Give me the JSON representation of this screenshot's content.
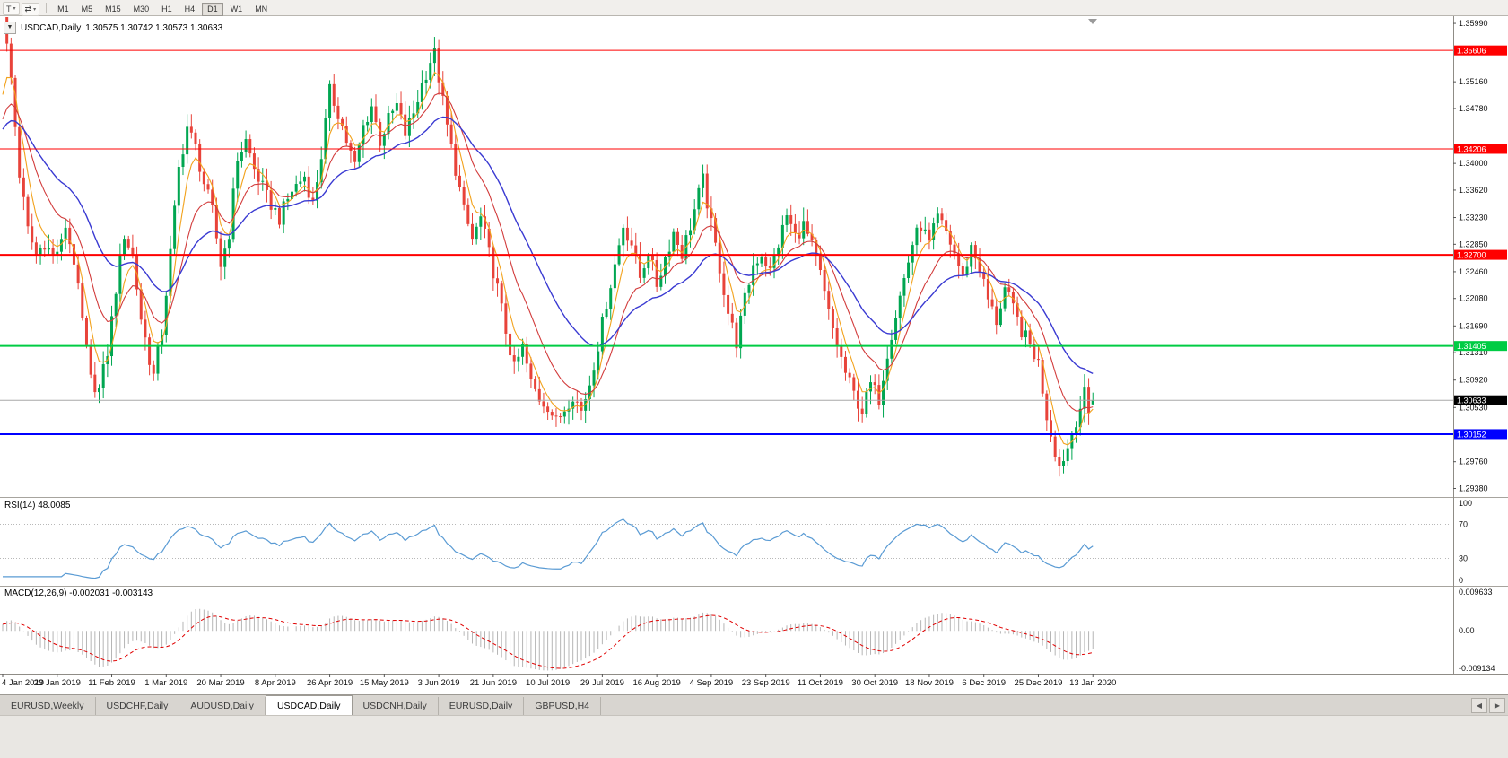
{
  "toolbar": {
    "icon_buttons": [
      {
        "name": "chart-type-button",
        "glyph": "T",
        "caret": "▾"
      },
      {
        "name": "cursor-mode-button",
        "glyph": "⇄",
        "caret": "▾"
      }
    ],
    "timeframes": [
      "M1",
      "M5",
      "M15",
      "M30",
      "H1",
      "H4",
      "D1",
      "W1",
      "MN"
    ],
    "active_timeframe": "D1"
  },
  "chart": {
    "oct_glyph": "▼",
    "title": "USDCAD,Daily",
    "ohlc_text": "1.30575 1.30742 1.30573 1.30633"
  },
  "chart_data": {
    "type": "candlestick",
    "symbol": "USDCAD",
    "timeframe": "Daily",
    "open": 1.30575,
    "high": 1.30742,
    "low": 1.30573,
    "close": 1.30633,
    "bar_count": 261,
    "x_label_step": 13,
    "x_labels": [
      "4 Jan 2019",
      "23 Jan 2019",
      "11 Feb 2019",
      "1 Mar 2019",
      "20 Mar 2019",
      "8 Apr 2019",
      "26 Apr 2019",
      "15 May 2019",
      "3 Jun 2019",
      "21 Jun 2019",
      "10 Jul 2019",
      "29 Jul 2019",
      "16 Aug 2019",
      "4 Sep 2019",
      "23 Sep 2019",
      "11 Oct 2019",
      "30 Oct 2019",
      "18 Nov 2019",
      "6 Dec 2019",
      "25 Dec 2019",
      "13 Jan 2020"
    ],
    "y_axis_labels": [
      "1.35990",
      "1.35160",
      "1.34780",
      "1.34000",
      "1.33620",
      "1.33230",
      "1.32850",
      "1.32460",
      "1.32080",
      "1.31690",
      "1.31310",
      "1.30920",
      "1.30530",
      "1.29760",
      "1.29380"
    ],
    "price_range_visible": [
      1.2927,
      1.3608
    ],
    "horizontal_lines": [
      {
        "label": "1.35606",
        "value": 1.35606,
        "color": "#ff0000",
        "width": 1
      },
      {
        "label": "1.34206",
        "value": 1.34206,
        "color": "#ff0000",
        "width": 1
      },
      {
        "label": "1.32700",
        "value": 1.327,
        "color": "#ff0000",
        "width": 2
      },
      {
        "label": "1.31405",
        "value": 1.31405,
        "color": "#00cc44",
        "width": 2
      },
      {
        "label": "1.30152",
        "value": 1.30152,
        "color": "#0000ff",
        "width": 2
      }
    ],
    "current_price": {
      "label": "1.30633",
      "value": 1.30633,
      "line_color": "#a8a8a8",
      "badge_bg": "#000000"
    },
    "candle_up_color": "#00a651",
    "candle_down_color": "#e8433a",
    "moving_averages": [
      {
        "name": "fast-ma",
        "period": 5,
        "color": "#f2a21c"
      },
      {
        "name": "medium-ma",
        "period": 13,
        "color": "#d23b3b"
      },
      {
        "name": "slow-ma",
        "period": 30,
        "color": "#3a3ad2"
      }
    ],
    "price_waypoints": [
      [
        0,
        1.362
      ],
      [
        1,
        1.3565
      ],
      [
        2,
        1.352
      ],
      [
        4,
        1.3385
      ],
      [
        6,
        1.3305
      ],
      [
        8,
        1.327
      ],
      [
        10,
        1.3288
      ],
      [
        12,
        1.3268
      ],
      [
        14,
        1.3285
      ],
      [
        15,
        1.3312
      ],
      [
        17,
        1.3262
      ],
      [
        19,
        1.3175
      ],
      [
        21,
        1.3092
      ],
      [
        23,
        1.3078
      ],
      [
        25,
        1.3132
      ],
      [
        27,
        1.3222
      ],
      [
        29,
        1.33
      ],
      [
        31,
        1.3268
      ],
      [
        33,
        1.318
      ],
      [
        35,
        1.3122
      ],
      [
        36,
        1.3098
      ],
      [
        38,
        1.3162
      ],
      [
        40,
        1.3272
      ],
      [
        42,
        1.3392
      ],
      [
        44,
        1.3452
      ],
      [
        46,
        1.3422
      ],
      [
        48,
        1.3372
      ],
      [
        50,
        1.3332
      ],
      [
        52,
        1.3256
      ],
      [
        54,
        1.3302
      ],
      [
        56,
        1.3408
      ],
      [
        58,
        1.3432
      ],
      [
        60,
        1.3392
      ],
      [
        63,
        1.3352
      ],
      [
        66,
        1.3322
      ],
      [
        69,
        1.3362
      ],
      [
        72,
        1.3382
      ],
      [
        74,
        1.3342
      ],
      [
        76,
        1.3412
      ],
      [
        78,
        1.3502
      ],
      [
        80,
        1.3472
      ],
      [
        82,
        1.3432
      ],
      [
        84,
        1.3396
      ],
      [
        86,
        1.3452
      ],
      [
        88,
        1.3482
      ],
      [
        90,
        1.3432
      ],
      [
        92,
        1.3462
      ],
      [
        94,
        1.3482
      ],
      [
        96,
        1.3442
      ],
      [
        98,
        1.3472
      ],
      [
        100,
        1.3512
      ],
      [
        102,
        1.3546
      ],
      [
        103,
        1.3556
      ],
      [
        104,
        1.3522
      ],
      [
        106,
        1.3452
      ],
      [
        108,
        1.3392
      ],
      [
        110,
        1.3332
      ],
      [
        112,
        1.3292
      ],
      [
        114,
        1.3322
      ],
      [
        116,
        1.3272
      ],
      [
        118,
        1.3222
      ],
      [
        120,
        1.3162
      ],
      [
        122,
        1.3108
      ],
      [
        124,
        1.3138
      ],
      [
        126,
        1.3088
      ],
      [
        128,
        1.3066
      ],
      [
        130,
        1.3056
      ],
      [
        132,
        1.3032
      ],
      [
        134,
        1.3052
      ],
      [
        136,
        1.3072
      ],
      [
        138,
        1.3048
      ],
      [
        140,
        1.3088
      ],
      [
        142,
        1.3142
      ],
      [
        144,
        1.3202
      ],
      [
        146,
        1.3256
      ],
      [
        148,
        1.3312
      ],
      [
        150,
        1.3286
      ],
      [
        152,
        1.3238
      ],
      [
        154,
        1.3276
      ],
      [
        156,
        1.3228
      ],
      [
        158,
        1.3266
      ],
      [
        160,
        1.3302
      ],
      [
        162,
        1.3272
      ],
      [
        164,
        1.3312
      ],
      [
        166,
        1.3356
      ],
      [
        167,
        1.3376
      ],
      [
        169,
        1.3312
      ],
      [
        171,
        1.3252
      ],
      [
        173,
        1.3188
      ],
      [
        175,
        1.3146
      ],
      [
        177,
        1.3206
      ],
      [
        179,
        1.3256
      ],
      [
        181,
        1.3272
      ],
      [
        183,
        1.3246
      ],
      [
        185,
        1.3286
      ],
      [
        187,
        1.3326
      ],
      [
        189,
        1.3296
      ],
      [
        191,
        1.3312
      ],
      [
        193,
        1.3282
      ],
      [
        195,
        1.3242
      ],
      [
        197,
        1.3186
      ],
      [
        199,
        1.3142
      ],
      [
        201,
        1.3102
      ],
      [
        203,
        1.3072
      ],
      [
        205,
        1.3048
      ],
      [
        207,
        1.3086
      ],
      [
        209,
        1.3066
      ],
      [
        211,
        1.3132
      ],
      [
        213,
        1.3186
      ],
      [
        215,
        1.3236
      ],
      [
        217,
        1.3286
      ],
      [
        219,
        1.3312
      ],
      [
        221,
        1.3286
      ],
      [
        223,
        1.3322
      ],
      [
        225,
        1.3302
      ],
      [
        227,
        1.3272
      ],
      [
        229,
        1.3236
      ],
      [
        231,
        1.3282
      ],
      [
        233,
        1.3252
      ],
      [
        235,
        1.3206
      ],
      [
        237,
        1.3176
      ],
      [
        239,
        1.3222
      ],
      [
        241,
        1.3192
      ],
      [
        243,
        1.3162
      ],
      [
        245,
        1.3142
      ],
      [
        247,
        1.3116
      ],
      [
        249,
        1.3042
      ],
      [
        251,
        1.2992
      ],
      [
        252,
        1.297
      ],
      [
        254,
        1.2996
      ],
      [
        256,
        1.3036
      ],
      [
        258,
        1.3072
      ],
      [
        259,
        1.3044
      ],
      [
        260,
        1.30633
      ]
    ],
    "indicators": {
      "rsi": {
        "label": "RSI(14) 48.0085",
        "period": 14,
        "value": 48.0085,
        "levels": [
          70,
          30
        ],
        "axis_labels": [
          "100",
          "70",
          "30",
          "0"
        ],
        "range": [
          0,
          100
        ],
        "color": "#5a9bd4"
      },
      "macd": {
        "label": "MACD(12,26,9) -0.002031 -0.003143",
        "fast": 12,
        "slow": 26,
        "signal": 9,
        "macd_value": -0.002031,
        "signal_value": -0.003143,
        "axis_labels": [
          "0.009633",
          "0.00",
          "-0.009134"
        ],
        "range": [
          -0.009134,
          0.009633
        ],
        "histogram_color": "#b5b5b5",
        "signal_color": "#e00000"
      }
    }
  },
  "tabs": {
    "items": [
      "EURUSD,Weekly",
      "USDCHF,Daily",
      "AUDUSD,Daily",
      "USDCAD,Daily",
      "USDCNH,Daily",
      "EURUSD,Daily",
      "GBPUSD,H4"
    ],
    "active": "USDCAD,Daily",
    "scroll_left_glyph": "◀",
    "scroll_right_glyph": "▶"
  }
}
